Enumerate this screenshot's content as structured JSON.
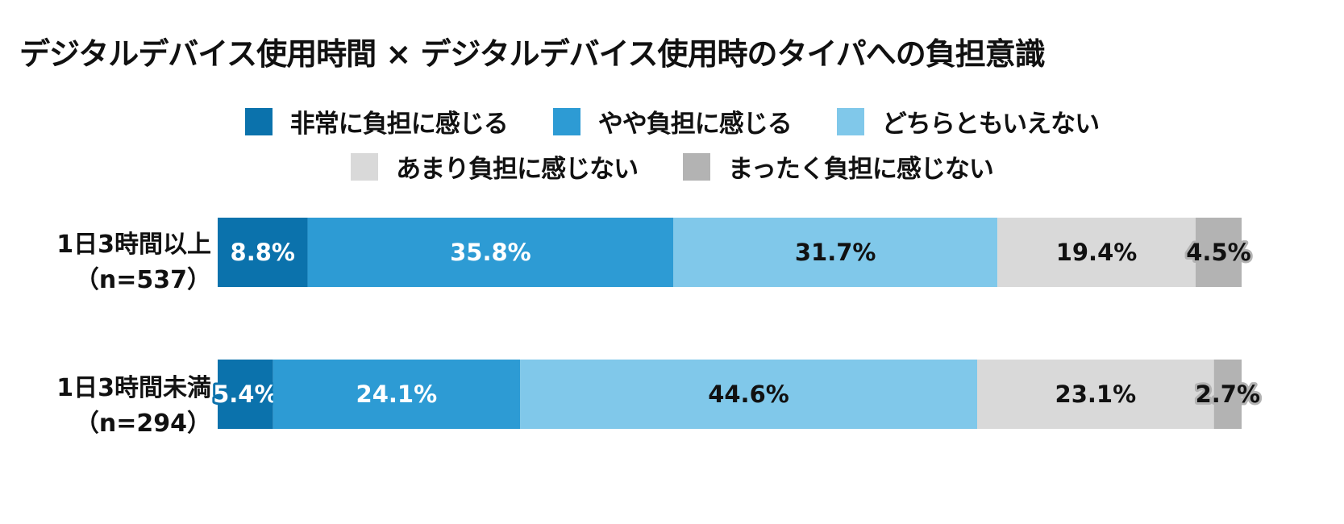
{
  "title": "デジタルデバイス使用時間 × デジタルデバイス使用時のタイパへの負担意識",
  "legend": [
    {
      "label": "非常に負担に感じる",
      "color": "#0B72AC"
    },
    {
      "label": "やや負担に感じる",
      "color": "#2D9BD4"
    },
    {
      "label": "どちらともいえない",
      "color": "#80C8EA"
    },
    {
      "label": "あまり負担に感じない",
      "color": "#D9D9D9"
    },
    {
      "label": "まったく負担に感じない",
      "color": "#B3B3B3"
    }
  ],
  "rows": [
    {
      "label_line1": "1日3時間以上",
      "label_line2": "（n=537）"
    },
    {
      "label_line1": "1日3時間未満",
      "label_line2": "（n=294）"
    }
  ],
  "chart_data": {
    "type": "bar",
    "orientation": "horizontal",
    "stacked": "100%",
    "title": "デジタルデバイス使用時間 × デジタルデバイス使用時のタイパへの負担意識",
    "categories": [
      "1日3時間以上（n=537）",
      "1日3時間未満（n=294）"
    ],
    "series": [
      {
        "name": "非常に負担に感じる",
        "values": [
          8.8,
          5.4
        ],
        "labels": [
          "8.8%",
          "5.4%"
        ],
        "color": "#0B72AC",
        "label_color": "#ffffff"
      },
      {
        "name": "やや負担に感じる",
        "values": [
          35.8,
          24.1
        ],
        "labels": [
          "35.8%",
          "24.1%"
        ],
        "color": "#2D9BD4",
        "label_color": "#ffffff"
      },
      {
        "name": "どちらともいえない",
        "values": [
          31.7,
          44.6
        ],
        "labels": [
          "31.7%",
          "44.6%"
        ],
        "color": "#80C8EA",
        "label_color": "#111111"
      },
      {
        "name": "あまり負担に感じない",
        "values": [
          19.4,
          23.1
        ],
        "labels": [
          "19.4%",
          "23.1%"
        ],
        "color": "#D9D9D9",
        "label_color": "#111111"
      },
      {
        "name": "まったく負担に感じない",
        "values": [
          4.5,
          2.7
        ],
        "labels": [
          "4.5%",
          "2.7%"
        ],
        "color": "#B3B3B3",
        "label_color": "#111111"
      }
    ],
    "xlim": [
      0,
      100
    ],
    "legend": "top",
    "grid": false
  }
}
